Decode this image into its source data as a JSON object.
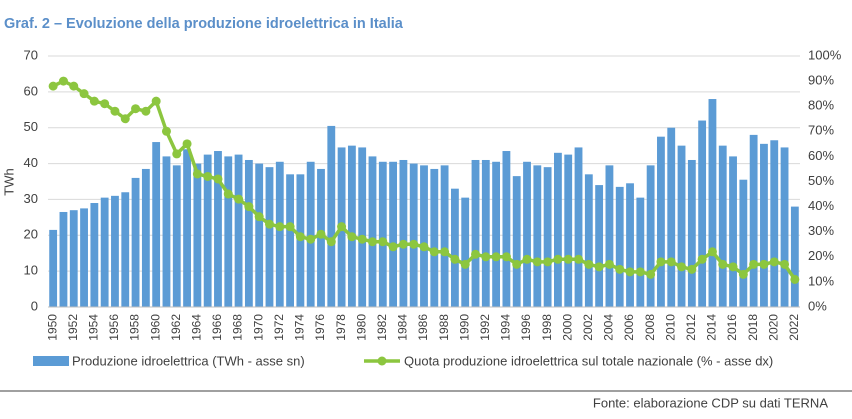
{
  "chart_data": {
    "type": "bar-line",
    "title": "Graf. 2 – Evoluzione della produzione idroelettrica in Italia",
    "y_label": "TWh",
    "source": "Fonte: elaborazione CDP su dati TERNA",
    "categories": [
      "1950",
      null,
      "1952",
      null,
      "1954",
      null,
      "1956",
      null,
      "1958",
      null,
      "1960",
      null,
      "1962",
      null,
      "1964",
      null,
      "1966",
      null,
      "1968",
      null,
      "1970",
      null,
      "1972",
      null,
      "1974",
      null,
      "1976",
      null,
      "1978",
      null,
      "1980",
      null,
      "1982",
      null,
      "1984",
      null,
      "1986",
      null,
      "1988",
      null,
      "1990",
      null,
      "1992",
      null,
      "1994",
      null,
      "1996",
      null,
      "1998",
      null,
      "2000",
      null,
      "2002",
      null,
      "2004",
      null,
      "2006",
      null,
      "2008",
      null,
      "2010",
      null,
      "2012",
      null,
      "2014",
      null,
      "2016",
      null,
      "2018",
      null,
      "2020",
      null,
      "2022"
    ],
    "series": [
      {
        "name": "Produzione idroelettrica (TWh - asse sn)",
        "type": "bar",
        "color": "#5b9bd5",
        "values": [
          21.5,
          26.5,
          27,
          27.5,
          29,
          30.5,
          31,
          32,
          36,
          38.5,
          46,
          42,
          39.5,
          44,
          40,
          42.5,
          43.5,
          42,
          42.5,
          41,
          40,
          39,
          40.5,
          37,
          37,
          40.5,
          38.5,
          50.5,
          44.5,
          45,
          44.5,
          42,
          40.5,
          40.5,
          41,
          40,
          39.5,
          38.5,
          39.5,
          33,
          30.5,
          41,
          41,
          40.5,
          43.5,
          36.5,
          40.5,
          39.5,
          39,
          43,
          42.5,
          44.5,
          37,
          34,
          39.5,
          33.5,
          34.5,
          30.5,
          39.5,
          47.5,
          50,
          45,
          41,
          52,
          58,
          45,
          42,
          35.5,
          48,
          45.5,
          46.5,
          44.5,
          28
        ]
      },
      {
        "name": "Quota produzione idroelettrica sul totale nazionale (% - asse dx)",
        "type": "line",
        "axis": "y2",
        "color": "#8cc63f",
        "values": [
          88,
          90,
          88,
          85,
          82,
          81,
          78,
          75,
          79,
          78,
          82,
          70,
          61,
          65,
          53,
          52,
          51,
          45,
          43,
          40,
          36,
          33,
          32,
          32,
          28,
          27,
          29,
          26,
          32,
          28,
          27,
          26,
          26,
          24,
          25,
          25,
          24,
          22,
          22,
          19,
          17,
          21,
          20,
          20,
          20,
          17,
          19,
          18,
          18,
          19,
          19,
          19,
          17,
          16,
          17,
          15,
          14,
          14,
          13,
          18,
          18,
          16,
          15,
          19,
          22,
          17,
          16,
          13,
          17,
          17,
          18,
          17,
          11
        ]
      }
    ],
    "ylim": [
      0,
      70
    ],
    "yticks": [
      0,
      10,
      20,
      30,
      40,
      50,
      60,
      70
    ],
    "y2lim": [
      0,
      100
    ],
    "y2ticks": [
      {
        "value": 0,
        "label": "0%"
      },
      {
        "value": 10,
        "label": "10%"
      },
      {
        "value": 20,
        "label": "20%"
      },
      {
        "value": 30,
        "label": "30%"
      },
      {
        "value": 40,
        "label": "40%"
      },
      {
        "value": 50,
        "label": "50%"
      },
      {
        "value": 60,
        "label": "60%"
      },
      {
        "value": 70,
        "label": "70%"
      },
      {
        "value": 80,
        "label": "80%"
      },
      {
        "value": 90,
        "label": "90%"
      },
      {
        "value": 100,
        "label": "100%"
      }
    ],
    "grid": true
  }
}
